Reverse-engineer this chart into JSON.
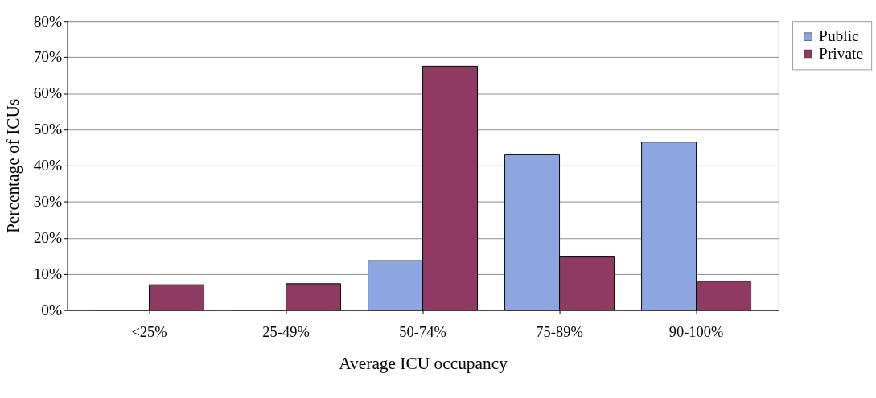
{
  "chart_data": {
    "type": "bar",
    "xlabel": "Average ICU occupancy",
    "ylabel": "Percentage of ICUs",
    "categories": [
      "<25%",
      "25-49%",
      "50-74%",
      "75-89%",
      "90-100%"
    ],
    "series": [
      {
        "name": "Public",
        "color": "#8da6e2",
        "values": [
          0,
          0,
          13.7,
          43,
          46.5
        ]
      },
      {
        "name": "Private",
        "color": "#8e3a62",
        "values": [
          7,
          7.3,
          67.5,
          14.7,
          8
        ]
      }
    ],
    "ylim": [
      0,
      80
    ],
    "yticks": [
      {
        "value": 0,
        "label": "0%"
      },
      {
        "value": 10,
        "label": "10%"
      },
      {
        "value": 20,
        "label": "20%"
      },
      {
        "value": 30,
        "label": "30%"
      },
      {
        "value": 40,
        "label": "40%"
      },
      {
        "value": 50,
        "label": "50%"
      },
      {
        "value": 60,
        "label": "60%"
      },
      {
        "value": 70,
        "label": "70%"
      },
      {
        "value": 80,
        "label": "80%"
      }
    ],
    "grid": "y",
    "legend": "right"
  }
}
